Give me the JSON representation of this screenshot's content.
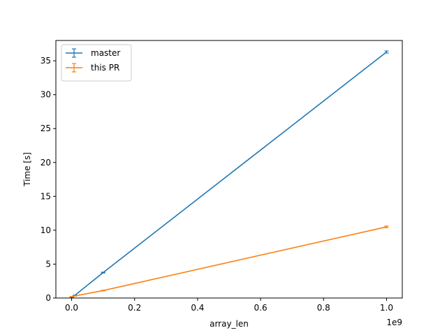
{
  "chart_data": {
    "type": "line",
    "title": "",
    "xlabel": "array_len",
    "ylabel": "Time [s]",
    "x_offset_text": "1e9",
    "xlim": [
      -0.05,
      1.05
    ],
    "ylim": [
      0,
      38
    ],
    "x_ticks": [
      "0.0",
      "0.2",
      "0.4",
      "0.6",
      "0.8",
      "1.0"
    ],
    "y_ticks": [
      "0",
      "5",
      "10",
      "15",
      "20",
      "25",
      "30",
      "35"
    ],
    "grid": false,
    "legend_position": "top-left",
    "error_bars": true,
    "series": [
      {
        "name": "master",
        "color": "#1f77b4",
        "x": [
          0.0,
          0.001,
          0.01,
          0.1,
          1.0
        ],
        "y": [
          0.05,
          0.07,
          0.39,
          3.75,
          36.3
        ],
        "err": [
          0.01,
          0.01,
          0.02,
          0.06,
          0.15
        ]
      },
      {
        "name": "this PR",
        "color": "#ff7f0e",
        "x": [
          0.0,
          0.001,
          0.01,
          0.1,
          1.0
        ],
        "y": [
          0.2,
          0.21,
          0.3,
          1.1,
          10.5
        ],
        "err": [
          0.01,
          0.01,
          0.02,
          0.05,
          0.12
        ]
      }
    ]
  }
}
